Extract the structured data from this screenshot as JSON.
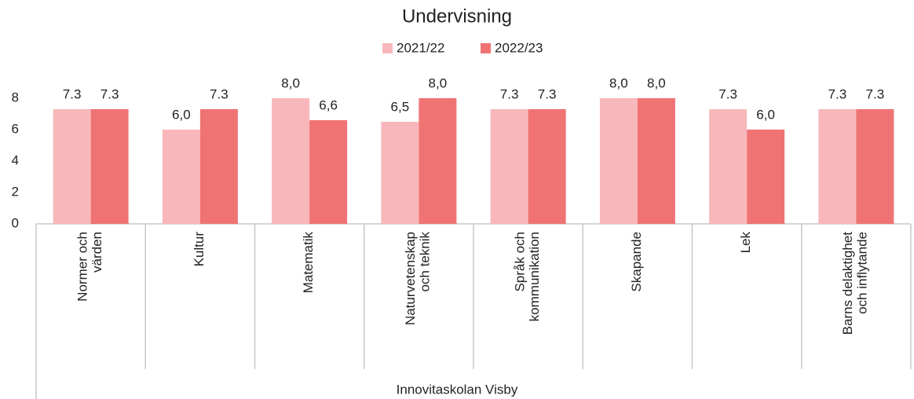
{
  "chart_data": {
    "type": "bar",
    "title": "Undervisning",
    "categories": [
      "Normer och\nvärden",
      "Kultur",
      "Matematik",
      "Naturvetenskap\noch teknik",
      "Språk och\nkommunikation",
      "Skapande",
      "Lek",
      "Barns delaktighet\noch inflytande"
    ],
    "series": [
      {
        "name": "2021/22",
        "color": "#f8b8bb",
        "values": [
          7.3,
          6.0,
          8.0,
          6.5,
          7.3,
          8.0,
          7.3,
          7.3
        ],
        "value_labels": [
          "7.3",
          "6,0",
          "8,0",
          "6,5",
          "7.3",
          "8,0",
          "7.3",
          "7.3"
        ]
      },
      {
        "name": "2022/23",
        "color": "#f07374",
        "values": [
          7.3,
          7.3,
          6.6,
          8.0,
          7.3,
          8.0,
          6.0,
          7.3
        ],
        "value_labels": [
          "7.3",
          "7.3",
          "6,6",
          "8,0",
          "7.3",
          "8,0",
          "6,0",
          "7.3"
        ]
      }
    ],
    "xlabel": "Innovitaskolan Visby",
    "ylim": [
      0,
      8
    ],
    "yticks": [
      0,
      2,
      4,
      6,
      8
    ],
    "grid": false,
    "legend": "top"
  }
}
